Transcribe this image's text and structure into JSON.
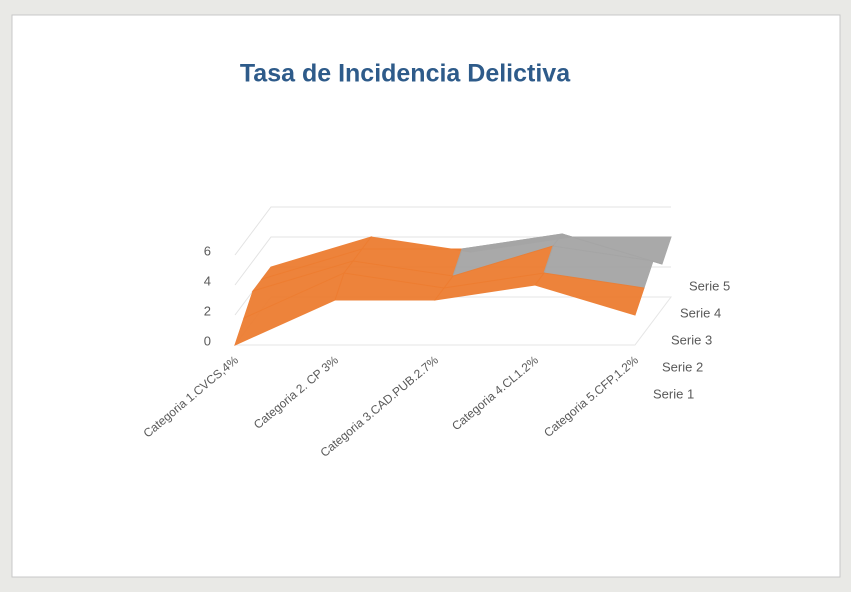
{
  "chart_data": {
    "type": "surface",
    "title": "Tasa de Incidencia Delictiva",
    "categories": [
      "Categoria 1.CVCS,4%",
      "Categoria 2. CP 3%",
      "Categoria 3.CAD.PUB.2.7%",
      "Categoria 4.CL1.2%",
      "Categoria 5.CFP,1.2%"
    ],
    "series": [
      {
        "name": "Serie 1",
        "values": [
          0,
          3,
          3,
          4,
          2
        ]
      },
      {
        "name": "Serie 2",
        "values": [
          1,
          4,
          3,
          4,
          3
        ]
      },
      {
        "name": "Serie 3",
        "values": [
          2,
          4,
          3,
          5,
          4
        ]
      },
      {
        "name": "Serie 4",
        "values": [
          2,
          4,
          4,
          5,
          3
        ]
      },
      {
        "name": "Serie 5",
        "values": [
          2,
          4,
          3,
          4,
          4
        ]
      }
    ],
    "ylim": [
      0,
      6
    ],
    "yticks": [
      0,
      2,
      4,
      6
    ],
    "band_colors": [
      "#4472c4",
      "#ed7d31",
      "#a5a5a5"
    ],
    "grid": true
  }
}
